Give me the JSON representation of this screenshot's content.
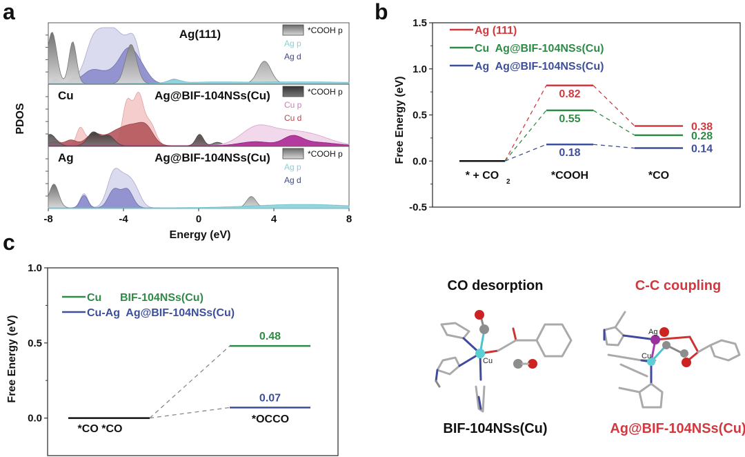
{
  "panels": {
    "a": "a",
    "b": "b",
    "c": "c"
  },
  "colors": {
    "red": "#d0393f",
    "green": "#2e8b46",
    "blue": "#3d4f9a",
    "black": "#111111",
    "gray_fill": "#8a8a8a",
    "dark_gray_fill": "#4a4a4a",
    "ag_p": "#8fd3dc",
    "ag_d": "#8f8fcc",
    "ag_d_light": "#d9d9ee",
    "cu_p": "#b0319a",
    "cu_p_light": "#f1d6ea",
    "cu_d": "#b5575c",
    "cu_d_light": "#f6caca",
    "cu_text": "#c0444a",
    "ag_text": "#4a57a0"
  },
  "chart_data": [
    {
      "id": "a",
      "type": "area",
      "ylabel": "PDOS",
      "xlabel": "Energy (eV)",
      "xlim": [
        -8,
        8
      ],
      "xticks": [
        "-8",
        "-4",
        "0",
        "4",
        "8"
      ],
      "subplots": [
        {
          "title": "Ag(111)",
          "site_label": "",
          "legend": [
            "*COOH p",
            "Ag p",
            "Ag d"
          ],
          "series": [
            {
              "name": "Ag d (total envelope)",
              "peaks": [
                [
                  -7.6,
                  0.08,
                  0.2
                ],
                [
                  -6.6,
                  0.07,
                  0.2
                ],
                [
                  -5.6,
                  0.72,
                  0.45
                ],
                [
                  -4.7,
                  0.82,
                  0.5
                ],
                [
                  -3.8,
                  0.55,
                  0.5
                ],
                [
                  -3.4,
                  0.4,
                  0.3
                ],
                [
                  -1.3,
                  0.08,
                  0.3
                ]
              ]
            },
            {
              "name": "Ag d",
              "peaks": [
                [
                  -7.6,
                  0.08,
                  0.2
                ],
                [
                  -6.7,
                  0.06,
                  0.2
                ],
                [
                  -5.7,
                  0.22,
                  0.5
                ],
                [
                  -4.5,
                  0.2,
                  0.6
                ],
                [
                  -3.7,
                  0.52,
                  0.45
                ],
                [
                  -3.0,
                  0.2,
                  0.4
                ]
              ]
            },
            {
              "name": "*COOH p",
              "peaks": [
                [
                  -7.8,
                  0.92,
                  0.25
                ],
                [
                  -6.7,
                  0.75,
                  0.2
                ],
                [
                  -3.6,
                  0.7,
                  0.3
                ],
                [
                  3.5,
                  0.4,
                  0.35
                ]
              ]
            },
            {
              "name": "Ag p",
              "peaks": [
                [
                  -1.3,
                  0.06,
                  0.35
                ],
                [
                  0.5,
                  0.02,
                  1.5
                ],
                [
                  5.5,
                  0.03,
                  3
                ]
              ]
            }
          ]
        },
        {
          "title": "Ag@BIF-104NSs(Cu)",
          "site_label": "Cu",
          "legend": [
            "*COOH p",
            "Cu p",
            "Cu d"
          ],
          "series": [
            {
              "name": "Cu d (total envelope)",
              "peaks": [
                [
                  -7.7,
                  0.12,
                  0.3
                ],
                [
                  -6.3,
                  0.3,
                  0.2
                ],
                [
                  -5.5,
                  0.2,
                  0.4
                ],
                [
                  -3.8,
                  0.78,
                  0.25
                ],
                [
                  -3.2,
                  0.85,
                  0.25
                ],
                [
                  -2.6,
                  0.4,
                  0.3
                ],
                [
                  0.05,
                  0.2,
                  0.2
                ]
              ]
            },
            {
              "name": "Cu d",
              "peaks": [
                [
                  -7.7,
                  0.07,
                  0.3
                ],
                [
                  -6.8,
                  0.1,
                  0.3
                ],
                [
                  -5.6,
                  0.2,
                  0.4
                ],
                [
                  -4.5,
                  0.2,
                  0.5
                ],
                [
                  -3.6,
                  0.3,
                  0.5
                ],
                [
                  -2.8,
                  0.3,
                  0.4
                ],
                [
                  0.05,
                  0.15,
                  0.2
                ]
              ]
            },
            {
              "name": "*COOH p",
              "peaks": [
                [
                  -7.9,
                  0.2,
                  0.3
                ],
                [
                  -5.6,
                  0.24,
                  0.3
                ],
                [
                  -4.8,
                  0.18,
                  0.3
                ],
                [
                  0.05,
                  0.2,
                  0.2
                ],
                [
                  1.0,
                  0.06,
                  0.25
                ]
              ]
            },
            {
              "name": "Cu p (total envelope)",
              "peaks": [
                [
                  3.0,
                  0.25,
                  0.8
                ],
                [
                  4.5,
                  0.22,
                  1.2
                ],
                [
                  6.2,
                  0.12,
                  1.0
                ]
              ]
            },
            {
              "name": "Cu p",
              "peaks": [
                [
                  3.0,
                  0.07,
                  0.8
                ],
                [
                  5.0,
                  0.15,
                  0.5
                ],
                [
                  6.2,
                  0.06,
                  1.0
                ]
              ]
            }
          ]
        },
        {
          "title": "Ag@BIF-104NSs(Cu)",
          "site_label": "Ag",
          "legend": [
            "*COOH p",
            "Ag p",
            "Ag d"
          ],
          "series": [
            {
              "name": "Ag d (total envelope)",
              "peaks": [
                [
                  -6.1,
                  0.25,
                  0.2
                ],
                [
                  -4.5,
                  0.62,
                  0.35
                ],
                [
                  -3.8,
                  0.45,
                  0.35
                ],
                [
                  -3.3,
                  0.2,
                  0.3
                ]
              ]
            },
            {
              "name": "Ag d",
              "peaks": [
                [
                  -6.1,
                  0.22,
                  0.2
                ],
                [
                  -4.5,
                  0.32,
                  0.3
                ],
                [
                  -3.8,
                  0.32,
                  0.3
                ]
              ]
            },
            {
              "name": "*COOH p",
              "peaks": [
                [
                  -7.7,
                  0.42,
                  0.25
                ],
                [
                  2.8,
                  0.2,
                  0.25
                ]
              ]
            },
            {
              "name": "Ag p",
              "peaks": [
                [
                  5.5,
                  0.06,
                  2.5
                ]
              ]
            }
          ]
        }
      ]
    },
    {
      "id": "b",
      "type": "line",
      "ylabel": "Free Energy (eV)",
      "ylim": [
        -0.5,
        1.5
      ],
      "yticks": [
        "-0.5",
        "0.0",
        "0.5",
        "1.0",
        "1.5"
      ],
      "categories": [
        "* + CO2",
        "*COOH",
        "*CO"
      ],
      "category_labels": [
        {
          "main": "* + CO",
          "sub": "2"
        },
        {
          "main": "*COOH",
          "sub": ""
        },
        {
          "main": "*CO",
          "sub": ""
        }
      ],
      "series": [
        {
          "name": "Ag (111)",
          "color_key": "red",
          "values": [
            0,
            0.82,
            0.38
          ],
          "labels": [
            "",
            "0.82",
            "0.38"
          ]
        },
        {
          "name": "Cu  Ag@BIF-104NSs(Cu)",
          "color_key": "green",
          "values": [
            0,
            0.55,
            0.28
          ],
          "labels": [
            "",
            "0.55",
            "0.28"
          ]
        },
        {
          "name": "Ag  Ag@BIF-104NSs(Cu)",
          "color_key": "blue",
          "values": [
            0,
            0.18,
            0.14
          ],
          "labels": [
            "",
            "0.18",
            "0.14"
          ]
        }
      ],
      "legend": [
        "Ag (111)",
        "Cu  Ag@BIF-104NSs(Cu)",
        "Ag  Ag@BIF-104NSs(Cu)"
      ]
    },
    {
      "id": "c",
      "type": "line",
      "ylabel": "Free Energy (eV)",
      "ylim": [
        -0.25,
        1.0
      ],
      "yticks": [
        "0.0",
        "0.5",
        "1.0"
      ],
      "categories": [
        "*CO *CO",
        "*OCCO"
      ],
      "series": [
        {
          "name": "Cu      BIF-104NSs(Cu)",
          "color_key": "green",
          "values": [
            0,
            0.48
          ],
          "labels": [
            "",
            "0.48"
          ]
        },
        {
          "name": "Cu-Ag  Ag@BIF-104NSs(Cu)",
          "color_key": "blue",
          "values": [
            0,
            0.07
          ],
          "labels": [
            "",
            "0.07"
          ]
        }
      ],
      "legend": [
        "Cu      BIF-104NSs(Cu)",
        "Cu-Ag  Ag@BIF-104NSs(Cu)"
      ]
    }
  ],
  "structures": [
    {
      "heading": "CO desorption",
      "caption": "BIF-104NSs(Cu)",
      "metal_labels": [
        "Cu"
      ],
      "color_key": "black"
    },
    {
      "heading": "C-C coupling",
      "caption": "Ag@BIF-104NSs(Cu)",
      "metal_labels": [
        "Ag",
        "Cu"
      ],
      "color_key": "red"
    }
  ],
  "atom_labels": {
    "C": "C",
    "O": "O"
  }
}
